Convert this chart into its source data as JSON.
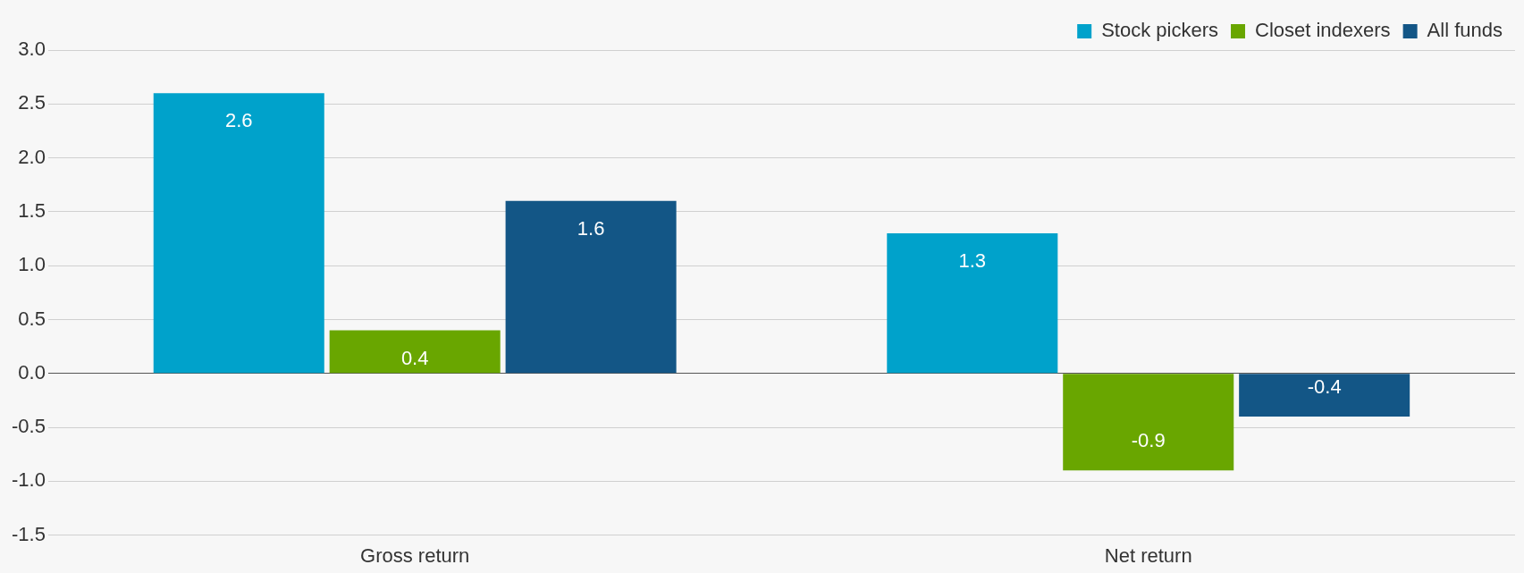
{
  "chart_data": {
    "type": "bar",
    "categories": [
      "Gross return",
      "Net return"
    ],
    "series": [
      {
        "name": "Stock pickers",
        "color": "#00a2cb",
        "values": [
          2.6,
          1.3
        ]
      },
      {
        "name": "Closet indexers",
        "color": "#69a600",
        "values": [
          0.4,
          -0.9
        ]
      },
      {
        "name": "All funds",
        "color": "#135686",
        "values": [
          1.6,
          -0.4
        ]
      }
    ],
    "ylim": [
      -1.5,
      3.0
    ],
    "yticks": [
      {
        "value": -1.5,
        "label": "-1.5"
      },
      {
        "value": -1.0,
        "label": "-1.0"
      },
      {
        "value": -0.5,
        "label": "-0.5"
      },
      {
        "value": 0,
        "label": "0.0"
      },
      {
        "value": 0.5,
        "label": "0.5"
      },
      {
        "value": 1.0,
        "label": "1.0"
      },
      {
        "value": 1.5,
        "label": "1.5"
      },
      {
        "value": 2.0,
        "label": "2.0"
      },
      {
        "value": 2.5,
        "label": "2.5"
      },
      {
        "value": 3.0,
        "label": "3.0"
      }
    ],
    "grid": "y",
    "legend": "top right",
    "data_labels": true
  }
}
